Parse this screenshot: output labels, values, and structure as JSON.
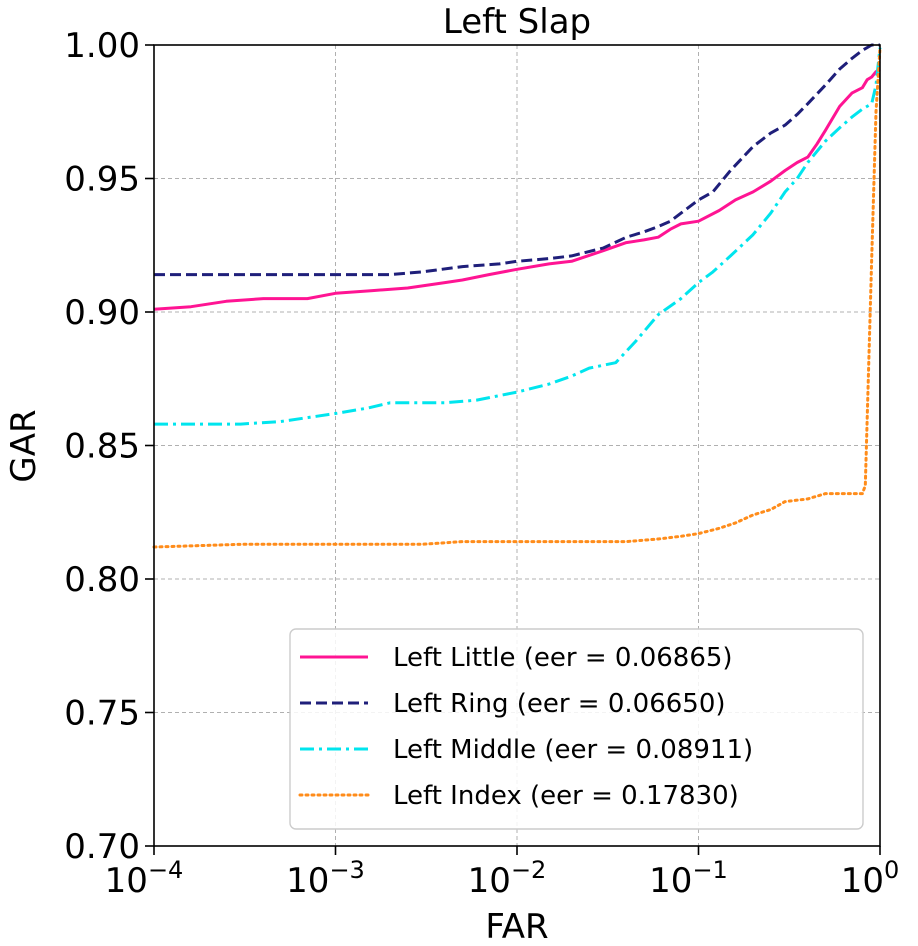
{
  "chart_data": {
    "type": "line",
    "title": "Left Slap",
    "xlabel": "FAR",
    "ylabel": "GAR",
    "x_scale": "log",
    "xlim": [
      0.0001,
      1
    ],
    "ylim": [
      0.7,
      1.0
    ],
    "grid": true,
    "legend_position": "lower-right",
    "x_ticks": [
      {
        "value": 0.0001,
        "base": "10",
        "exp": "−4"
      },
      {
        "value": 0.001,
        "base": "10",
        "exp": "−3"
      },
      {
        "value": 0.01,
        "base": "10",
        "exp": "−2"
      },
      {
        "value": 0.1,
        "base": "10",
        "exp": "−1"
      },
      {
        "value": 1,
        "base": "10",
        "exp": "0"
      }
    ],
    "y_ticks": [
      {
        "value": 0.7,
        "label": "0.70"
      },
      {
        "value": 0.75,
        "label": "0.75"
      },
      {
        "value": 0.8,
        "label": "0.80"
      },
      {
        "value": 0.85,
        "label": "0.85"
      },
      {
        "value": 0.9,
        "label": "0.90"
      },
      {
        "value": 0.95,
        "label": "0.95"
      },
      {
        "value": 1.0,
        "label": "1.00"
      }
    ],
    "series": [
      {
        "name": "Left Little (eer = 0.06865)",
        "color": "#ff1493",
        "dash": "solid",
        "x": [
          0.0001,
          0.00016,
          0.00025,
          0.0004,
          0.0007,
          0.001,
          0.0016,
          0.0025,
          0.004,
          0.005,
          0.007,
          0.01,
          0.015,
          0.02,
          0.03,
          0.04,
          0.05,
          0.06,
          0.07,
          0.08,
          0.1,
          0.13,
          0.16,
          0.2,
          0.25,
          0.3,
          0.35,
          0.4,
          0.45,
          0.5,
          0.6,
          0.7,
          0.8,
          0.85,
          0.9,
          0.95,
          1.0
        ],
        "y": [
          0.901,
          0.902,
          0.904,
          0.905,
          0.905,
          0.907,
          0.908,
          0.909,
          0.911,
          0.912,
          0.914,
          0.916,
          0.918,
          0.919,
          0.923,
          0.926,
          0.927,
          0.928,
          0.931,
          0.933,
          0.934,
          0.938,
          0.942,
          0.945,
          0.949,
          0.953,
          0.956,
          0.958,
          0.963,
          0.968,
          0.977,
          0.982,
          0.984,
          0.987,
          0.988,
          0.99,
          0.991
        ]
      },
      {
        "name": "Left Ring (eer = 0.06650)",
        "color": "#1f1f7a",
        "dash": "dashed",
        "x": [
          0.0001,
          0.0003,
          0.001,
          0.002,
          0.003,
          0.005,
          0.008,
          0.01,
          0.015,
          0.02,
          0.03,
          0.04,
          0.05,
          0.06,
          0.07,
          0.08,
          0.1,
          0.12,
          0.15,
          0.2,
          0.25,
          0.3,
          0.35,
          0.4,
          0.5,
          0.6,
          0.7,
          0.8,
          0.9,
          1.0
        ],
        "y": [
          0.914,
          0.914,
          0.914,
          0.914,
          0.915,
          0.917,
          0.918,
          0.919,
          0.92,
          0.921,
          0.924,
          0.928,
          0.93,
          0.932,
          0.934,
          0.937,
          0.942,
          0.945,
          0.953,
          0.962,
          0.967,
          0.97,
          0.974,
          0.978,
          0.985,
          0.991,
          0.995,
          0.998,
          1.0,
          1.0
        ]
      },
      {
        "name": "Left Middle (eer = 0.08911)",
        "color": "#00e5ee",
        "dash": "dashdot",
        "x": [
          0.0001,
          0.0003,
          0.0005,
          0.001,
          0.0015,
          0.002,
          0.004,
          0.006,
          0.01,
          0.015,
          0.02,
          0.025,
          0.035,
          0.045,
          0.06,
          0.08,
          0.1,
          0.12,
          0.15,
          0.2,
          0.25,
          0.3,
          0.35,
          0.4,
          0.5,
          0.6,
          0.7,
          0.8,
          0.9,
          0.95,
          1.0
        ],
        "y": [
          0.858,
          0.858,
          0.859,
          0.862,
          0.864,
          0.866,
          0.866,
          0.867,
          0.87,
          0.873,
          0.876,
          0.879,
          0.881,
          0.889,
          0.899,
          0.905,
          0.911,
          0.915,
          0.921,
          0.929,
          0.937,
          0.945,
          0.95,
          0.956,
          0.964,
          0.969,
          0.973,
          0.976,
          0.978,
          0.985,
          0.999
        ]
      },
      {
        "name": "Left Index (eer = 0.17830)",
        "color": "#ff8c1a",
        "dash": "dotted",
        "x": [
          0.0001,
          0.0003,
          0.001,
          0.003,
          0.005,
          0.01,
          0.02,
          0.04,
          0.06,
          0.08,
          0.1,
          0.13,
          0.16,
          0.2,
          0.25,
          0.3,
          0.4,
          0.5,
          0.6,
          0.7,
          0.8,
          0.83,
          0.9,
          0.95,
          1.0
        ],
        "y": [
          0.812,
          0.813,
          0.813,
          0.813,
          0.814,
          0.814,
          0.814,
          0.814,
          0.815,
          0.816,
          0.817,
          0.819,
          0.821,
          0.824,
          0.826,
          0.829,
          0.83,
          0.832,
          0.832,
          0.832,
          0.832,
          0.835,
          0.92,
          0.975,
          0.999
        ]
      }
    ]
  }
}
